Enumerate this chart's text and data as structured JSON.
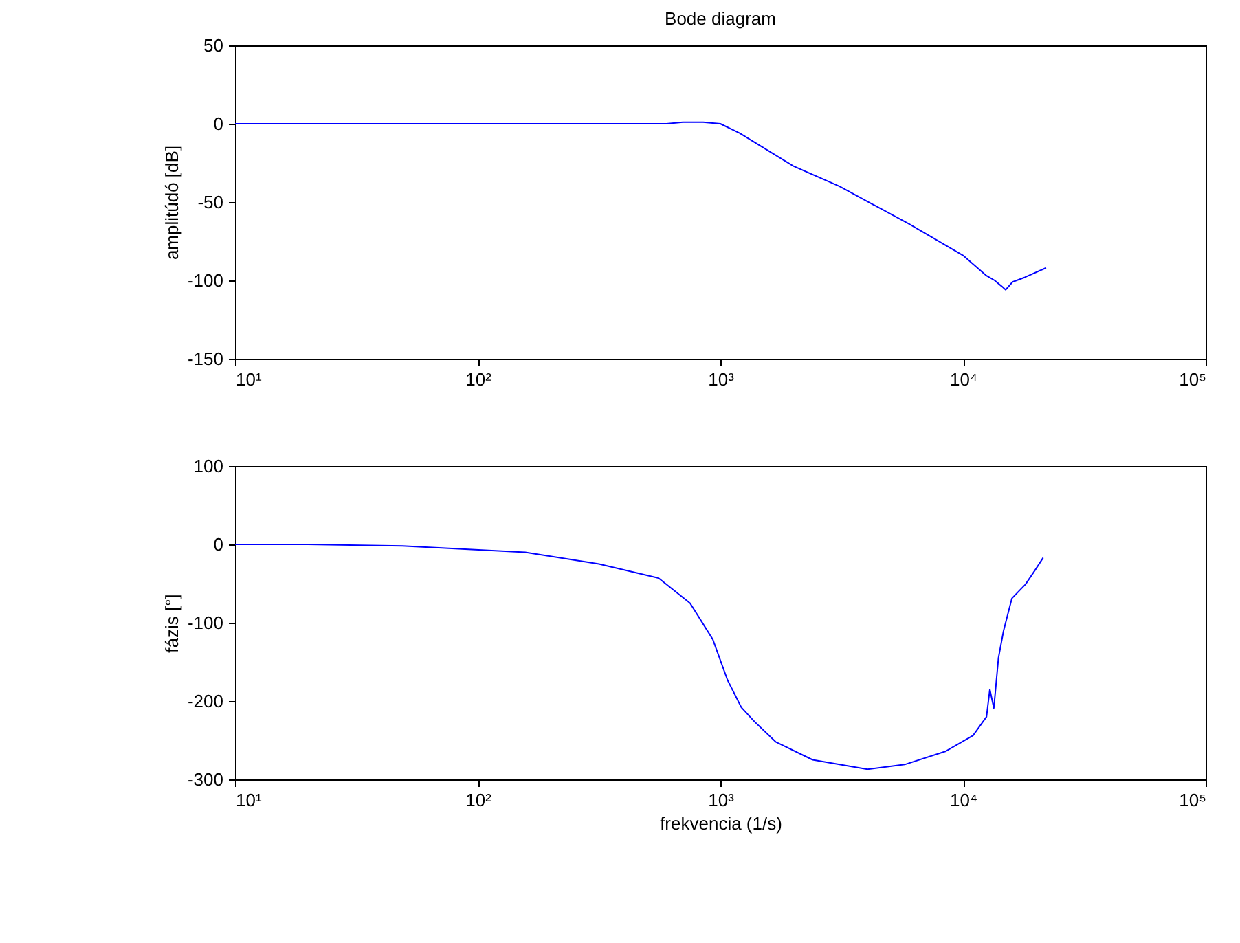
{
  "chart_data": [
    {
      "type": "line",
      "title": "Bode diagram",
      "ylabel": "amplitúdó [dB]",
      "log": "x",
      "grid": false,
      "xlim": [
        10,
        100000
      ],
      "xticks": [
        {
          "value": 10,
          "label": "10¹"
        },
        {
          "value": 100,
          "label": "10²"
        },
        {
          "value": 1000,
          "label": "10³"
        },
        {
          "value": 10000,
          "label": "10⁴"
        },
        {
          "value": 100000,
          "label": "10⁵"
        }
      ],
      "ylim": [
        -150,
        50
      ],
      "yticks": [
        -150,
        -100,
        -50,
        0,
        50
      ],
      "series": [
        {
          "color": "#0000ff",
          "x": [
            10,
            30,
            100,
            300,
            600,
            700,
            850,
            1000,
            1200,
            2000,
            3100,
            6000,
            10000,
            12500,
            13500,
            14500,
            15000,
            16000,
            18000,
            22000
          ],
          "values": [
            0,
            0,
            0,
            0,
            0,
            1,
            1,
            0,
            -6,
            -27,
            -40,
            -64,
            -84,
            -97,
            -100,
            -104,
            -106,
            -101,
            -98,
            -92
          ]
        }
      ]
    },
    {
      "type": "line",
      "xlabel": "frekvencia (1/s)",
      "ylabel": "fázis [°]",
      "log": "x",
      "grid": false,
      "xlim": [
        10,
        100000
      ],
      "xticks": [
        {
          "value": 10,
          "label": "10¹"
        },
        {
          "value": 100,
          "label": "10²"
        },
        {
          "value": 1000,
          "label": "10³"
        },
        {
          "value": 10000,
          "label": "10⁴"
        },
        {
          "value": 100000,
          "label": "10⁵"
        }
      ],
      "ylim": [
        -300,
        100
      ],
      "yticks": [
        -300,
        -200,
        -100,
        0,
        100
      ],
      "series": [
        {
          "color": "#0000ff",
          "x": [
            10,
            20,
            49,
            86,
            157,
            316,
            556,
            750,
            930,
            1070,
            1220,
            1380,
            1690,
            2400,
            4040,
            5750,
            8500,
            11000,
            12500,
            12900,
            13400,
            14000,
            14700,
            15900,
            18100,
            20000,
            21400
          ],
          "values": [
            0,
            0,
            -2,
            -6,
            -10,
            -25,
            -43,
            -75,
            -121,
            -173,
            -208,
            -226,
            -252,
            -275,
            -287,
            -281,
            -264,
            -244,
            -220,
            -185,
            -209,
            -145,
            -110,
            -69,
            -51,
            -31,
            -17
          ]
        }
      ]
    }
  ]
}
